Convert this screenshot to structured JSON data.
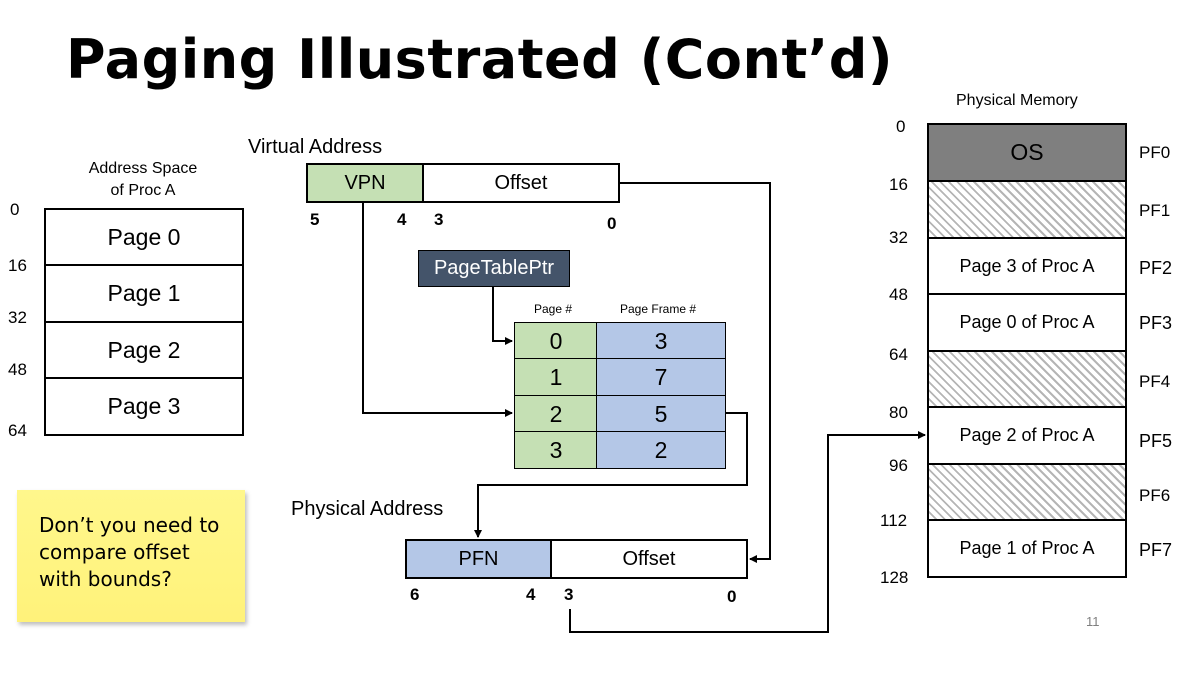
{
  "title": "Paging Illustrated (Cont’d)",
  "address_space": {
    "label_line1": "Address Space",
    "label_line2": "of Proc A",
    "pages": [
      "Page 0",
      "Page 1",
      "Page 2",
      "Page 3"
    ],
    "addresses": [
      "0",
      "16",
      "32",
      "48",
      "64"
    ]
  },
  "virtual_address": {
    "label": "Virtual Address",
    "vpn": "VPN",
    "offset": "Offset",
    "bits": [
      "5",
      "4",
      "3",
      "0"
    ]
  },
  "page_table_ptr": "PageTablePtr",
  "page_table": {
    "col_page": "Page #",
    "col_frame": "Page Frame #",
    "rows": [
      {
        "page": "0",
        "frame": "3"
      },
      {
        "page": "1",
        "frame": "7"
      },
      {
        "page": "2",
        "frame": "5"
      },
      {
        "page": "3",
        "frame": "2"
      }
    ]
  },
  "physical_address": {
    "label": "Physical Address",
    "pfn": "PFN",
    "offset": "Offset",
    "bits": [
      "6",
      "4",
      "3",
      "0"
    ]
  },
  "physical_memory": {
    "label": "Physical Memory",
    "addresses": [
      "0",
      "16",
      "32",
      "48",
      "64",
      "80",
      "96",
      "112",
      "128"
    ],
    "frames": [
      {
        "content": "OS",
        "name": "PF0",
        "style": "os"
      },
      {
        "content": "",
        "name": "PF1",
        "style": "free"
      },
      {
        "content": "Page 3 of Proc A",
        "name": "PF2",
        "style": "used"
      },
      {
        "content": "Page 0 of Proc A",
        "name": "PF3",
        "style": "used"
      },
      {
        "content": "",
        "name": "PF4",
        "style": "free"
      },
      {
        "content": "Page 2 of Proc A",
        "name": "PF5",
        "style": "used"
      },
      {
        "content": "",
        "name": "PF6",
        "style": "free"
      },
      {
        "content": "Page 1 of Proc A",
        "name": "PF7",
        "style": "used"
      }
    ]
  },
  "sticky_note": {
    "line1": "Don’t you need to",
    "line2": "compare offset",
    "line3": "with bounds?"
  },
  "slide_number": "11",
  "colors": {
    "vpn_green": "#c5e0b4",
    "pfn_blue": "#b4c7e7",
    "ptr_dark": "#44546a",
    "os_gray": "#7f7f7f",
    "sticky_yellow": "#fff27a"
  }
}
